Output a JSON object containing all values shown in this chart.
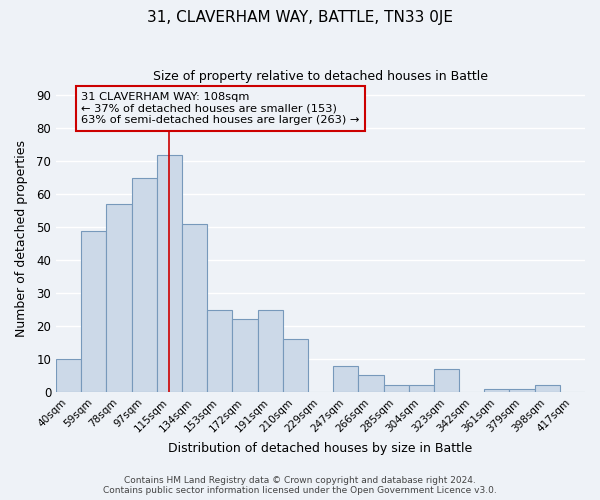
{
  "title": "31, CLAVERHAM WAY, BATTLE, TN33 0JE",
  "subtitle": "Size of property relative to detached houses in Battle",
  "xlabel": "Distribution of detached houses by size in Battle",
  "ylabel": "Number of detached properties",
  "bar_color": "#ccd9e8",
  "bar_edge_color": "#7799bb",
  "categories": [
    "40sqm",
    "59sqm",
    "78sqm",
    "97sqm",
    "115sqm",
    "134sqm",
    "153sqm",
    "172sqm",
    "191sqm",
    "210sqm",
    "229sqm",
    "247sqm",
    "266sqm",
    "285sqm",
    "304sqm",
    "323sqm",
    "342sqm",
    "361sqm",
    "379sqm",
    "398sqm",
    "417sqm"
  ],
  "values": [
    10,
    49,
    57,
    65,
    72,
    51,
    25,
    22,
    25,
    16,
    0,
    8,
    5,
    2,
    2,
    7,
    0,
    1,
    1,
    2,
    0
  ],
  "ylim": [
    0,
    93
  ],
  "yticks": [
    0,
    10,
    20,
    30,
    40,
    50,
    60,
    70,
    80,
    90
  ],
  "vline_x": 4.0,
  "marker_label_line1": "31 CLAVERHAM WAY: 108sqm",
  "marker_label_line2": "← 37% of detached houses are smaller (153)",
  "marker_label_line3": "63% of semi-detached houses are larger (263) →",
  "annotation_box_color": "#cc0000",
  "vline_color": "#cc0000",
  "footer_line1": "Contains HM Land Registry data © Crown copyright and database right 2024.",
  "footer_line2": "Contains public sector information licensed under the Open Government Licence v3.0.",
  "background_color": "#eef2f7",
  "grid_color": "#ffffff"
}
